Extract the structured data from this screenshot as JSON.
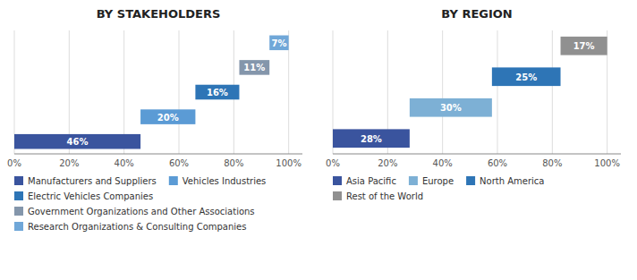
{
  "chart_data": [
    {
      "type": "waterfall",
      "title": "BY STAKEHOLDERS",
      "orientation": "horizontal",
      "categories": [
        "Manufacturers and Suppliers",
        "Vehicles Industries",
        "Electric Vehicles Companies",
        "Government Organizations and Other Associations",
        "Research Organizations & Consulting Companies"
      ],
      "values": [
        46,
        20,
        16,
        11,
        7
      ],
      "value_labels": [
        "46%",
        "20%",
        "16%",
        "11%",
        "7%"
      ],
      "colors": [
        "#3a549e",
        "#5b9bd5",
        "#2e75b6",
        "#8496ab",
        "#70a7d8"
      ],
      "xlim": [
        0,
        105
      ],
      "xticks": [
        {
          "value": 0,
          "label": "0%"
        },
        {
          "value": 20,
          "label": "20%"
        },
        {
          "value": 40,
          "label": "40%"
        },
        {
          "value": 60,
          "label": "60%"
        },
        {
          "value": 80,
          "label": "80%"
        },
        {
          "value": 100,
          "label": "100%"
        }
      ],
      "grid": true,
      "data_labels": true,
      "tick_labels": "x",
      "legend": "bottom"
    },
    {
      "type": "waterfall",
      "title": "BY REGION",
      "orientation": "horizontal",
      "categories": [
        "Asia Pacific",
        "Europe",
        "North America",
        "Rest of the World"
      ],
      "values": [
        28,
        30,
        25,
        17
      ],
      "value_labels": [
        "28%",
        "30%",
        "25%",
        "17%"
      ],
      "colors": [
        "#3a549e",
        "#7db0d5",
        "#2e75b6",
        "#909090"
      ],
      "xlim": [
        0,
        105
      ],
      "xticks": [
        {
          "value": 0,
          "label": "0%"
        },
        {
          "value": 20,
          "label": "20%"
        },
        {
          "value": 40,
          "label": "40%"
        },
        {
          "value": 60,
          "label": "60%"
        },
        {
          "value": 80,
          "label": "80%"
        },
        {
          "value": 100,
          "label": "100%"
        }
      ],
      "grid": true,
      "data_labels": true,
      "tick_labels": "x",
      "legend": "bottom"
    }
  ]
}
